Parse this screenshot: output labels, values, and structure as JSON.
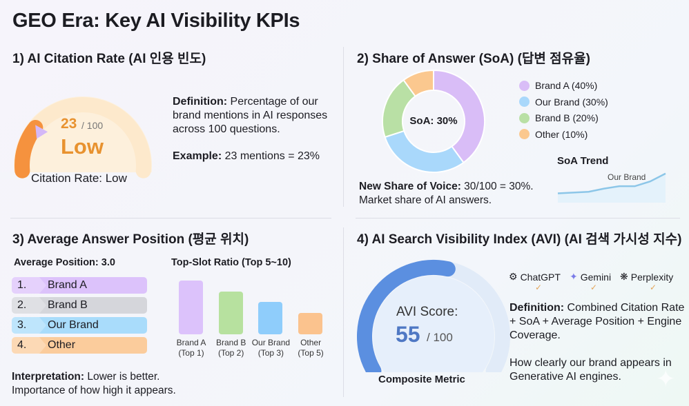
{
  "title": "GEO Era: Key AI Visibility KPIs",
  "s1": {
    "heading": "1) AI Citation Rate (AI 인용 빈도)",
    "score": "23",
    "max": "/ 100",
    "level": "Low",
    "caption": "Citation Rate: Low",
    "def_label": "Definition:",
    "def_text": " Percentage of our brand mentions in AI responses across 100 questions.",
    "ex_label": "Example:",
    "ex_text": " 23 mentions = 23%",
    "gauge_value": 23,
    "gauge_color": "#f5923e"
  },
  "s2": {
    "heading": "2) Share of Answer (SoA) (답변 점유율)",
    "center": "SoA: 30%",
    "legend": [
      "Brand A (40%)",
      "Our Brand (30%)",
      "Brand B (20%)",
      "Other (10%)"
    ],
    "nsv_label": "New Share of Voice:",
    "nsv_text": " 30/100 = 30%.",
    "nsv_line2": "Market share of AI answers.",
    "trend_title": "SoA Trend",
    "trend_label": "Our Brand"
  },
  "s3": {
    "heading": "3) Average Answer Position (평균 위치)",
    "avg": "Average Position: 3.0",
    "ranks": [
      {
        "n": "1.",
        "l": "Brand A"
      },
      {
        "n": "2.",
        "l": "Brand B"
      },
      {
        "n": "3.",
        "l": "Our Brand"
      },
      {
        "n": "4.",
        "l": "Other"
      }
    ],
    "ratio_title": "Top-Slot Ratio (Top 5~10)",
    "bars": [
      {
        "l1": "Brand A",
        "l2": "(Top 1)"
      },
      {
        "l1": "Brand B",
        "l2": "(Top 2)"
      },
      {
        "l1": "Our Brand",
        "l2": "(Top 3)"
      },
      {
        "l1": "Other",
        "l2": "(Top 5)"
      }
    ],
    "int_label": "Interpretation:",
    "int_text": " Lower is better.",
    "int_line2": "Importance of how high it appears."
  },
  "s4": {
    "heading": "4) AI Search Visibility Index (AVI) (AI 검색 가시성 지수)",
    "score_label": "AVI Score:",
    "score": "55",
    "max": "/ 100",
    "caption": "Composite Metric",
    "engines": [
      "ChatGPT",
      "Gemini",
      "Perplexity"
    ],
    "def_label": "Definition:",
    "def_text": " Combined Citation Rate + SoA + Average Position + Engine Coverage.",
    "how": "How clearly our brand appears in Generative AI engines.",
    "gauge_value": 55,
    "gauge_color": "#5b8fe0"
  },
  "chart_data": [
    {
      "type": "pie",
      "donut": true,
      "categories": [
        "Brand A",
        "Our Brand",
        "Brand B",
        "Other"
      ],
      "values": [
        40,
        30,
        20,
        10
      ],
      "colors": [
        "#d9bdf7",
        "#a9d8fb",
        "#b9e0a5",
        "#fbc88f"
      ]
    },
    {
      "type": "line",
      "title": "SoA Trend",
      "series": [
        {
          "name": "Our Brand",
          "values": [
            10,
            11,
            12,
            16,
            19,
            19,
            25,
            35
          ]
        }
      ],
      "color": "#8cc6e8"
    },
    {
      "type": "bar",
      "title": "Top-Slot Ratio (Top 5~10)",
      "categories": [
        "Brand A (Top 1)",
        "Brand B (Top 2)",
        "Our Brand (Top 3)",
        "Other (Top 5)"
      ],
      "values": [
        100,
        80,
        60,
        40
      ],
      "colors": [
        "#dcc2fb",
        "#b7e19f",
        "#8fcdfb",
        "#fbc38e"
      ]
    }
  ],
  "rank_colors": [
    "#dcc2fb",
    "#d5d6db",
    "#a9dcfb",
    "#fbcc9c"
  ]
}
